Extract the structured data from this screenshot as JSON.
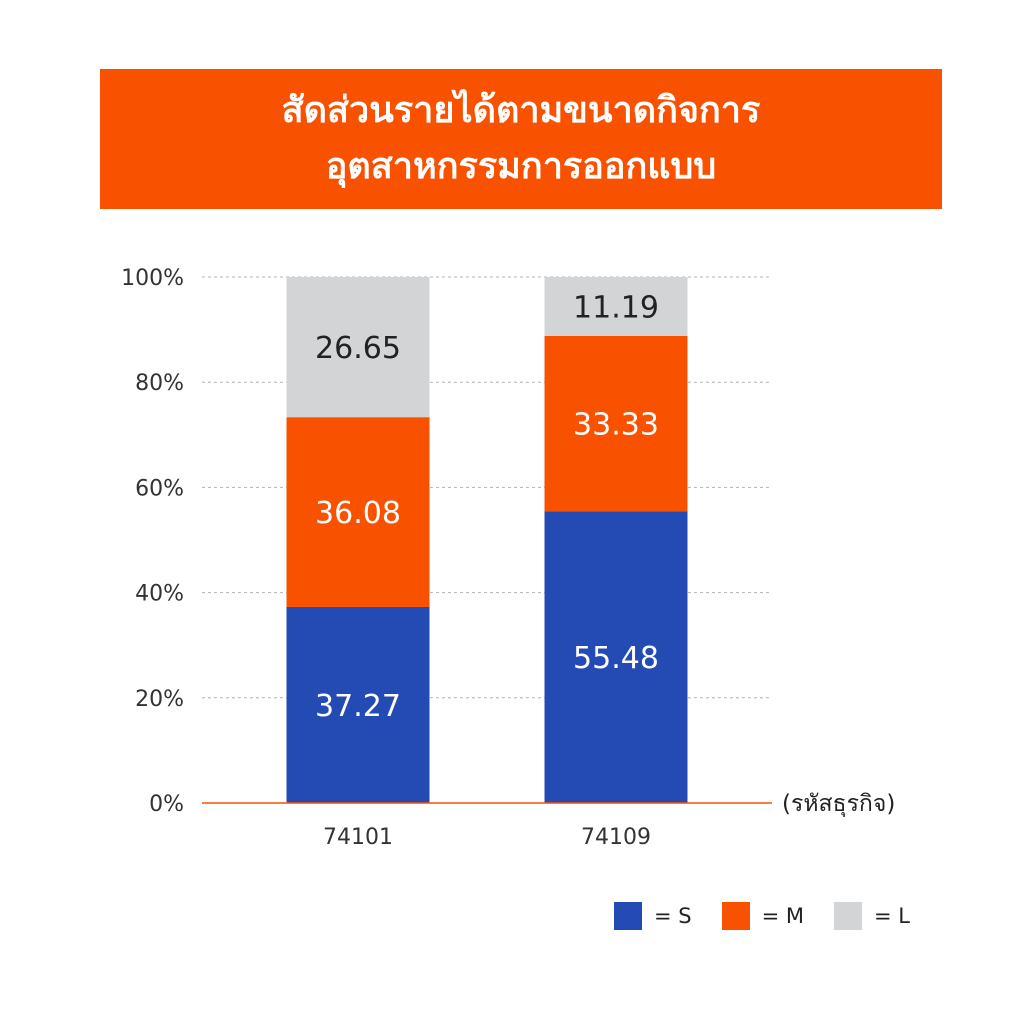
{
  "header": {
    "title_line1": "สัดส่วนรายได้ตามขนาดกิจการ",
    "title_line2": "อุตสาหกรรมการออกแบบ"
  },
  "colors": {
    "accent": "#f85100",
    "S": "#244bb4",
    "M": "#f85100",
    "L": "#d3d4d6",
    "axis_line": "#f85100"
  },
  "chart_data": {
    "type": "bar",
    "stacked": true,
    "title": "สัดส่วนรายได้ตามขนาดกิจการ อุตสาหกรรมการออกแบบ",
    "xlabel": "(รหัสธุรกิจ)",
    "ylabel": "",
    "categories": [
      "74101",
      "74109"
    ],
    "series": [
      {
        "name": "S",
        "values": [
          37.27,
          55.48
        ]
      },
      {
        "name": "M",
        "values": [
          36.08,
          33.33
        ]
      },
      {
        "name": "L",
        "values": [
          26.65,
          11.19
        ]
      }
    ],
    "ylim": [
      0,
      100
    ],
    "y_ticks": [
      "0%",
      "20%",
      "40%",
      "60%",
      "80%",
      "100%"
    ],
    "grid": true,
    "legend_position": "bottom-right",
    "legend": [
      {
        "key": "S",
        "label": "= S"
      },
      {
        "key": "M",
        "label": "= M"
      },
      {
        "key": "L",
        "label": "= L"
      }
    ]
  }
}
